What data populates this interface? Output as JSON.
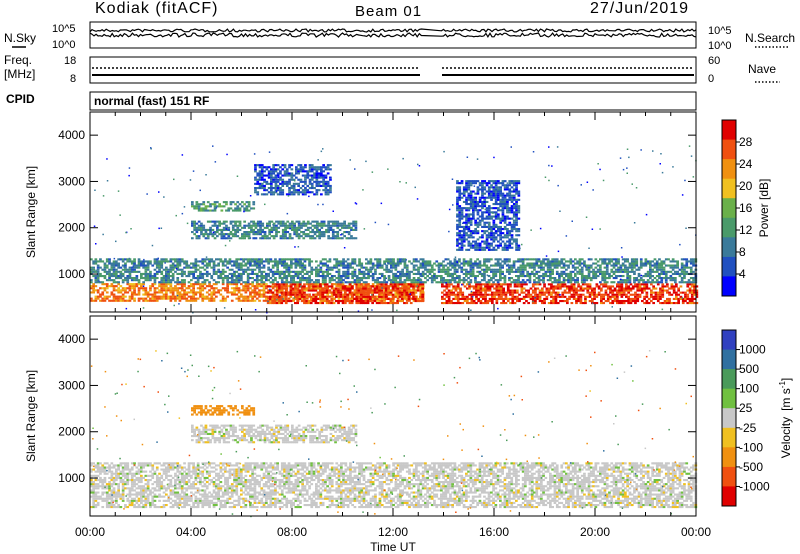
{
  "header": {
    "station": "Kodiak (fitACF)",
    "beam": "Beam 01",
    "date": "27/Jun/2019"
  },
  "noise_panel": {
    "left_label": "N.Sky",
    "right_label": "N.Search",
    "left_ticks": [
      "10^5",
      "10^0"
    ],
    "right_ticks": [
      "10^5",
      "10^0"
    ]
  },
  "freq_panel": {
    "left_label_1": "Freq.",
    "left_label_2": "[MHz]",
    "right_label": "Nave",
    "left_ticks": [
      "18",
      "8"
    ],
    "right_ticks": [
      "60",
      "0"
    ]
  },
  "cpid": {
    "label": "CPID",
    "mode": "normal (fast) 151 RF"
  },
  "colors": {
    "power_scale": [
      "#0000ff",
      "#2050c0",
      "#3a7a9a",
      "#4a9a6a",
      "#6ab04a",
      "#f0c020",
      "#f09010",
      "#f05010",
      "#e00000"
    ],
    "velocity_scale": [
      "#3040c0",
      "#3070a0",
      "#4a9a5a",
      "#70c040",
      "#c8c8c8",
      "#f0c020",
      "#f09010",
      "#f05010",
      "#e00000"
    ]
  },
  "chart_data": [
    {
      "type": "heatmap",
      "name": "power",
      "ylabel": "Slant Range [km]",
      "xlabel": "",
      "xlim": [
        "00:00",
        "24:00"
      ],
      "ylim": [
        180,
        4500
      ],
      "y_ticks": [
        "1000",
        "2000",
        "3000",
        "4000"
      ],
      "colorbar": {
        "label": "Power [dB]",
        "ticks": [
          "4",
          "8",
          "12",
          "16",
          "20",
          "24",
          "28"
        ],
        "range": [
          0,
          32
        ]
      },
      "data_gap_hours": [
        13.2,
        13.9
      ],
      "regions": [
        {
          "t_start": 0,
          "t_end": 13.2,
          "range_km": [
            400,
            800
          ],
          "level_db": 24
        },
        {
          "t_start": 7.0,
          "t_end": 13.2,
          "range_km": [
            350,
            800
          ],
          "level_db": 28
        },
        {
          "t_start": 13.9,
          "t_end": 24,
          "range_km": [
            350,
            800
          ],
          "level_db": 28
        },
        {
          "t_start": 0,
          "t_end": 24,
          "range_km": [
            800,
            1300
          ],
          "level_db": 10
        },
        {
          "t_start": 4.0,
          "t_end": 6.5,
          "range_km": [
            2350,
            2550
          ],
          "level_db": 12
        },
        {
          "t_start": 4.0,
          "t_end": 10.5,
          "range_km": [
            1750,
            2150
          ],
          "level_db": 10
        },
        {
          "t_start": 6.5,
          "t_end": 9.5,
          "range_km": [
            2700,
            3350
          ],
          "level_db": 6
        },
        {
          "t_start": 14.5,
          "t_end": 17.0,
          "range_km": [
            1500,
            3000
          ],
          "level_db": 6
        }
      ]
    },
    {
      "type": "heatmap",
      "name": "velocity",
      "ylabel": "Slant Range [km]",
      "xlabel": "Time UT",
      "xlim": [
        "00:00",
        "24:00"
      ],
      "ylim": [
        180,
        4500
      ],
      "x_ticks": [
        "00:00",
        "04:00",
        "08:00",
        "12:00",
        "16:00",
        "20:00",
        "00:00"
      ],
      "y_ticks": [
        "1000",
        "2000",
        "3000",
        "4000"
      ],
      "colorbar": {
        "label": "Velocity",
        "unit_base": "m s",
        "unit_exp": "-1",
        "ticks": [
          "1000",
          "500",
          "100",
          "25",
          "-25",
          "-100",
          "-500",
          "-1000"
        ]
      },
      "data_gap_hours": [
        13.2,
        13.9
      ],
      "regions": [
        {
          "t_start": 0,
          "t_end": 24,
          "range_km": [
            350,
            1300
          ],
          "velocity_ms": 0
        },
        {
          "t_start": 4.0,
          "t_end": 6.5,
          "range_km": [
            2350,
            2550
          ],
          "velocity_ms": -200
        },
        {
          "t_start": 4.0,
          "t_end": 10.5,
          "range_km": [
            1750,
            2150
          ],
          "velocity_ms": 0
        }
      ]
    }
  ]
}
